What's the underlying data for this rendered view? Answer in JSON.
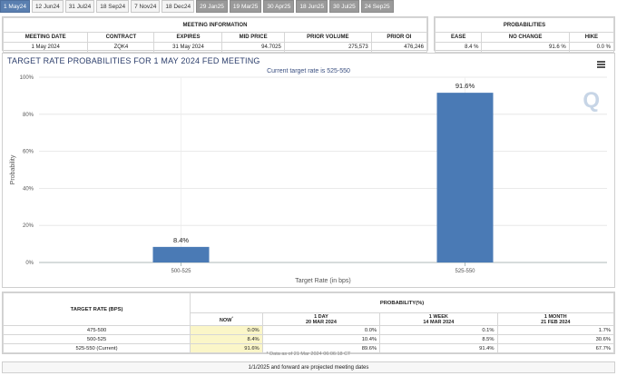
{
  "tabs": [
    {
      "label": "1 May24",
      "state": "active"
    },
    {
      "label": "12 Jun24",
      "state": "normal"
    },
    {
      "label": "31 Jul24",
      "state": "normal"
    },
    {
      "label": "18 Sep24",
      "state": "normal"
    },
    {
      "label": "7 Nov24",
      "state": "normal"
    },
    {
      "label": "18 Dec24",
      "state": "normal"
    },
    {
      "label": "29 Jan25",
      "state": "projected"
    },
    {
      "label": "19 Mar25",
      "state": "projected"
    },
    {
      "label": "30 Apr25",
      "state": "projected"
    },
    {
      "label": "18 Jun25",
      "state": "projected"
    },
    {
      "label": "30 Jul25",
      "state": "projected"
    },
    {
      "label": "24 Sep25",
      "state": "projected"
    }
  ],
  "meeting_info": {
    "title": "MEETING INFORMATION",
    "headers": [
      "MEETING DATE",
      "CONTRACT",
      "EXPIRES",
      "MID PRICE",
      "PRIOR VOLUME",
      "PRIOR OI"
    ],
    "values": [
      "1 May 2024",
      "ZQK4",
      "31 May 2024",
      "94.7025",
      "275,573",
      "476,246"
    ]
  },
  "probabilities": {
    "title": "PROBABILITIES",
    "headers": [
      "EASE",
      "NO CHANGE",
      "HIKE"
    ],
    "values": [
      "8.4 %",
      "91.6 %",
      "0.0 %"
    ]
  },
  "chart": {
    "title": "TARGET RATE PROBABILITIES FOR 1 MAY 2024 FED MEETING",
    "subtitle": "Current target rate is 525-550"
  },
  "chart_data": {
    "type": "bar",
    "title": "TARGET RATE PROBABILITIES FOR 1 MAY 2024 FED MEETING",
    "subtitle": "Current target rate is 525-550",
    "categories": [
      "500-525",
      "525-550"
    ],
    "values": [
      8.4,
      91.6
    ],
    "data_labels": [
      "8.4%",
      "91.6%"
    ],
    "xlabel": "Target Rate (in bps)",
    "ylabel": "Probability",
    "ylim": [
      0,
      100
    ],
    "yticks": [
      "0%",
      "20%",
      "40%",
      "60%",
      "80%",
      "100%"
    ],
    "bar_color": "#4a7ab5",
    "grid": true
  },
  "table": {
    "col1_header": "TARGET RATE (BPS)",
    "group_header": "PROBABILITY(%)",
    "now_label": "NOW",
    "now_marker": "*",
    "periods": [
      {
        "line1": "1 DAY",
        "line2": "20 MAR 2024"
      },
      {
        "line1": "1 WEEK",
        "line2": "14 MAR 2024"
      },
      {
        "line1": "1 MONTH",
        "line2": "21 FEB 2024"
      }
    ],
    "rows": [
      {
        "rate": "475-500",
        "now": "0.0%",
        "d1": "0.0%",
        "w1": "0.1%",
        "m1": "1.7%"
      },
      {
        "rate": "500-525",
        "now": "8.4%",
        "d1": "10.4%",
        "w1": "8.5%",
        "m1": "30.6%"
      },
      {
        "rate": "525-550 (Current)",
        "now": "91.6%",
        "d1": "89.6%",
        "w1": "91.4%",
        "m1": "67.7%"
      }
    ],
    "note": "* Data as of 21 Mar 2024 06:06:18 CT"
  },
  "footer": "1/1/2025 and forward are projected meeting dates"
}
